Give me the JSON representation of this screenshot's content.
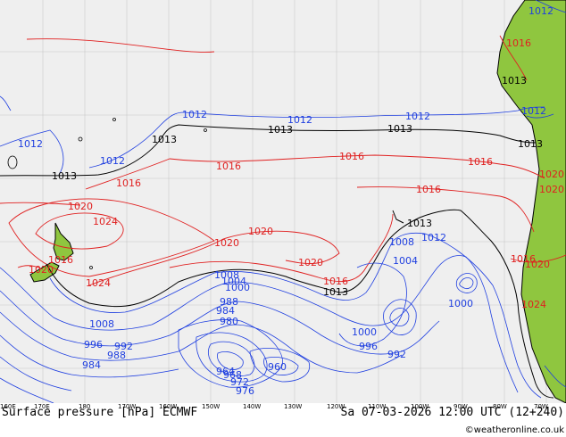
{
  "title_left": "Surface pressure [hPa] ECMWF",
  "title_right": "Sa 07-03-2026 12:00 UTC (12+240)",
  "credit": "©weatheronline.co.uk",
  "colors": {
    "ocean": "#efefef",
    "land": "#8fc63f",
    "coast": "#000000",
    "low_isobar": "#1f3fe0",
    "high_isobar": "#e02020",
    "ref_isobar": "#000000"
  },
  "longitude_ticks": [
    "160E",
    "170E",
    "180",
    "170W",
    "160W",
    "150W",
    "140W",
    "130W",
    "120W",
    "110W",
    "100W",
    "90W",
    "80W",
    "70W"
  ],
  "isobar_labels": {
    "black": [
      "1013",
      "1013",
      "1013",
      "1013",
      "1013",
      "1013",
      "1013",
      "1013"
    ],
    "red": [
      "1016",
      "1016",
      "1016",
      "1016",
      "1016",
      "1016",
      "1016",
      "1016",
      "1020",
      "1020",
      "1020",
      "1020",
      "1020",
      "1020",
      "1020",
      "1024",
      "1024",
      "1024",
      "1016",
      "1020"
    ],
    "blue": [
      "1012",
      "1012",
      "1012",
      "1012",
      "1012",
      "1012",
      "1012",
      "1012",
      "1008",
      "1008",
      "1008",
      "1004",
      "1004",
      "1000",
      "1000",
      "1000",
      "996",
      "996",
      "992",
      "992",
      "988",
      "988",
      "984",
      "984",
      "980",
      "976",
      "972",
      "968",
      "964",
      "960"
    ]
  }
}
